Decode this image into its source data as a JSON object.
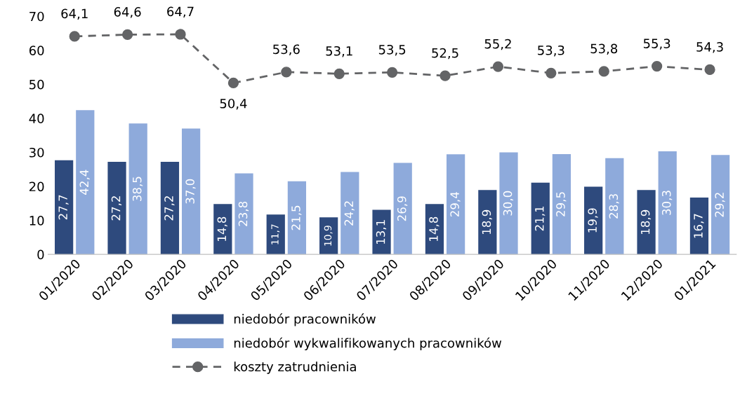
{
  "chart_data": {
    "type": "bar",
    "categories": [
      "01/2020",
      "02/2020",
      "03/2020",
      "04/2020",
      "05/2020",
      "06/2020",
      "07/2020",
      "08/2020",
      "09/2020",
      "10/2020",
      "11/2020",
      "12/2020",
      "01/2021"
    ],
    "series": [
      {
        "name": "niedobór pracowników",
        "color": "#2e4a7d",
        "values": [
          27.7,
          27.2,
          27.2,
          14.8,
          11.7,
          10.9,
          13.1,
          14.8,
          18.9,
          21.1,
          19.9,
          18.9,
          16.7
        ],
        "value_labels": [
          "27,7",
          "27,2",
          "27,2",
          "14,8",
          "11,7",
          "10,9",
          "13,1",
          "14,8",
          "18,9",
          "21,1",
          "19,9",
          "18,9",
          "16,7"
        ]
      },
      {
        "name": "niedobór wykwalifikowanych pracowników",
        "color": "#8eaadb",
        "values": [
          42.4,
          38.5,
          37.0,
          23.8,
          21.5,
          24.2,
          26.9,
          29.4,
          30.0,
          29.5,
          28.3,
          30.3,
          29.2
        ],
        "value_labels": [
          "42,4",
          "38,5",
          "37,0",
          "23,8",
          "21,5",
          "24,2",
          "26,9",
          "29,4",
          "30,0",
          "29,5",
          "28,3",
          "30,3",
          "29,2"
        ]
      },
      {
        "name": "koszty zatrudnienia",
        "type": "line",
        "color": "#636466",
        "marker": "circle",
        "line_style": "dashed",
        "values": [
          64.1,
          64.6,
          64.7,
          50.4,
          53.6,
          53.1,
          53.5,
          52.5,
          55.2,
          53.3,
          53.8,
          55.3,
          54.3
        ],
        "value_labels": [
          "64,1",
          "64,6",
          "64,7",
          "50,4",
          "53,6",
          "53,1",
          "53,5",
          "52,5",
          "55,2",
          "53,3",
          "53,8",
          "55,3",
          "54,3"
        ]
      }
    ],
    "ylim": [
      0,
      70
    ],
    "yticks": [
      0,
      10,
      20,
      30,
      40,
      50,
      60,
      70
    ],
    "grid": false,
    "legend": "bottom"
  }
}
